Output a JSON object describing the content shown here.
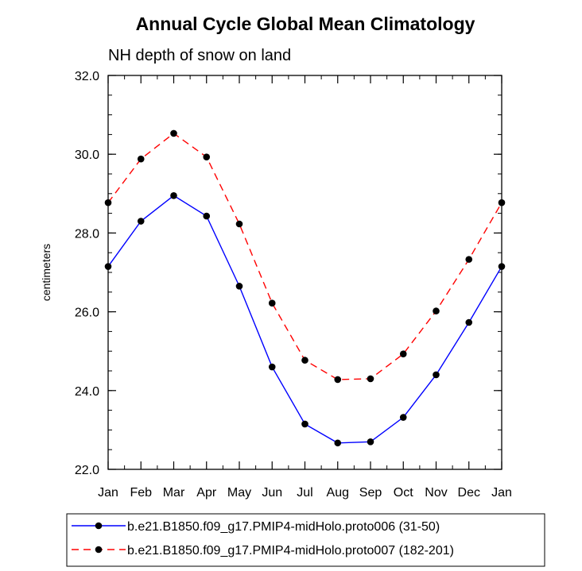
{
  "chart_data": {
    "type": "line",
    "title": "Annual Cycle Global Mean Climatology",
    "subtitle": "NH depth of snow on land",
    "xlabel": "",
    "ylabel": "centimeters",
    "categories": [
      "Jan",
      "Feb",
      "Mar",
      "Apr",
      "May",
      "Jun",
      "Jul",
      "Aug",
      "Sep",
      "Oct",
      "Nov",
      "Dec",
      "Jan"
    ],
    "ylim": [
      22.0,
      32.0
    ],
    "yticks": [
      "22.0",
      "24.0",
      "26.0",
      "28.0",
      "30.0",
      "32.0"
    ],
    "series": [
      {
        "name": "b.e21.B1850.f09_g17.PMIP4-midHolo.proto006 (31-50)",
        "color": "#0000ff",
        "dash": "solid",
        "values": [
          27.15,
          28.3,
          28.95,
          28.43,
          26.65,
          24.6,
          23.15,
          22.67,
          22.7,
          23.32,
          24.4,
          25.73,
          27.15
        ]
      },
      {
        "name": "b.e21.B1850.f09_g17.PMIP4-midHolo.proto007 (182-201)",
        "color": "#ff0000",
        "dash": "dashed",
        "values": [
          28.77,
          29.88,
          30.53,
          29.93,
          28.23,
          26.22,
          24.77,
          24.28,
          24.3,
          24.93,
          26.02,
          27.33,
          28.77
        ]
      }
    ],
    "legend_position": "bottom"
  }
}
